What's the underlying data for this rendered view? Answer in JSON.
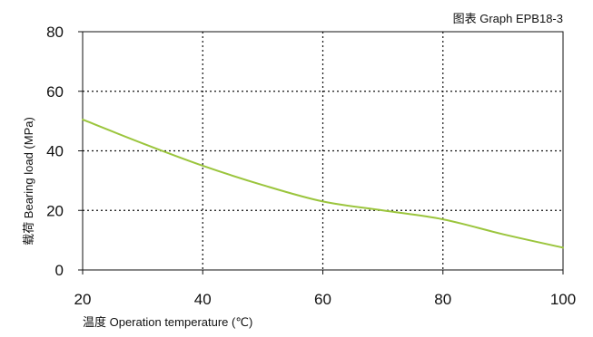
{
  "chart_data": {
    "type": "line",
    "title": "图表 Graph EPB18-3",
    "xlabel": "温度 Operation temperature (℃)",
    "ylabel": "载荷 Bearing load (MPa)",
    "xlim": [
      20,
      100
    ],
    "ylim": [
      0,
      80
    ],
    "xticks": [
      20,
      40,
      60,
      80,
      100
    ],
    "yticks": [
      0,
      20,
      40,
      60,
      80
    ],
    "grid": "dotted",
    "series": [
      {
        "color": "#9bc53d",
        "x": [
          20,
          30,
          40,
          50,
          60,
          70,
          80,
          90,
          100
        ],
        "y": [
          50.5,
          42.5,
          35,
          28.5,
          23,
          20,
          17,
          12,
          7.5
        ]
      }
    ]
  }
}
